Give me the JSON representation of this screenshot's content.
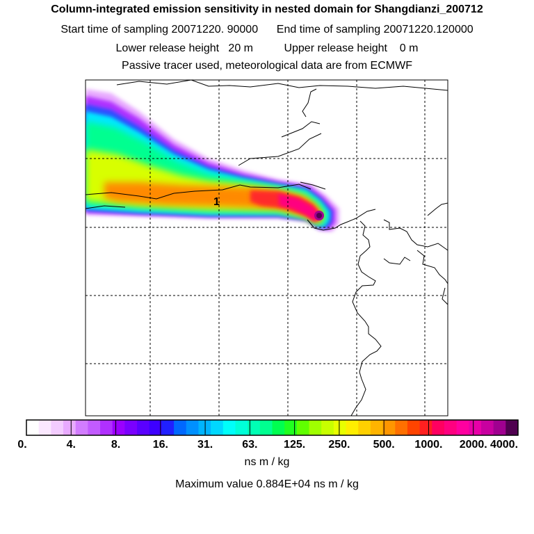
{
  "title": "Column-integrated emission sensitivity in nested domain for Shangdianzi_200712",
  "sampling": {
    "start_label": "Start time of sampling",
    "start_value": "20071220. 90000",
    "end_label": "End time of sampling",
    "end_value": "20071220.120000"
  },
  "release": {
    "lower_label": "Lower release height",
    "lower_value": "20 m",
    "upper_label": "Upper release height",
    "upper_value": "0 m"
  },
  "tracer_note": "Passive tracer used, meteorological data are from ECMWF",
  "chart_data": {
    "type": "heatmap",
    "map_marker_label": "1",
    "colorbar": {
      "tick_labels": [
        "0.",
        "4.",
        "8.",
        "16.",
        "31.",
        "63.",
        "125.",
        "250.",
        "500.",
        "1000.",
        "2000.",
        "4000."
      ],
      "colors": [
        "#ffffff",
        "#fbe8ff",
        "#f3ccff",
        "#e8aaff",
        "#d27cff",
        "#c25bff",
        "#b030ff",
        "#9a00ff",
        "#7a00ff",
        "#5a00ff",
        "#3d00ff",
        "#2020ff",
        "#0068ff",
        "#0090ff",
        "#00b4ff",
        "#00d8ff",
        "#00fffa",
        "#00ffd8",
        "#00ffb4",
        "#00ff90",
        "#00ff50",
        "#20ff20",
        "#60ff00",
        "#a0ff00",
        "#c8ff00",
        "#e8ff00",
        "#ffee00",
        "#ffd000",
        "#ffb400",
        "#ff9600",
        "#ff7000",
        "#ff4400",
        "#ff2020",
        "#ff0060",
        "#ff0080",
        "#ff00a0",
        "#e800a8",
        "#c800a0",
        "#a00090",
        "#500050"
      ],
      "units": "ns m / kg"
    },
    "max_label": "Maximum value",
    "max_value": "0.884E+04",
    "max_units": "ns m / kg"
  }
}
